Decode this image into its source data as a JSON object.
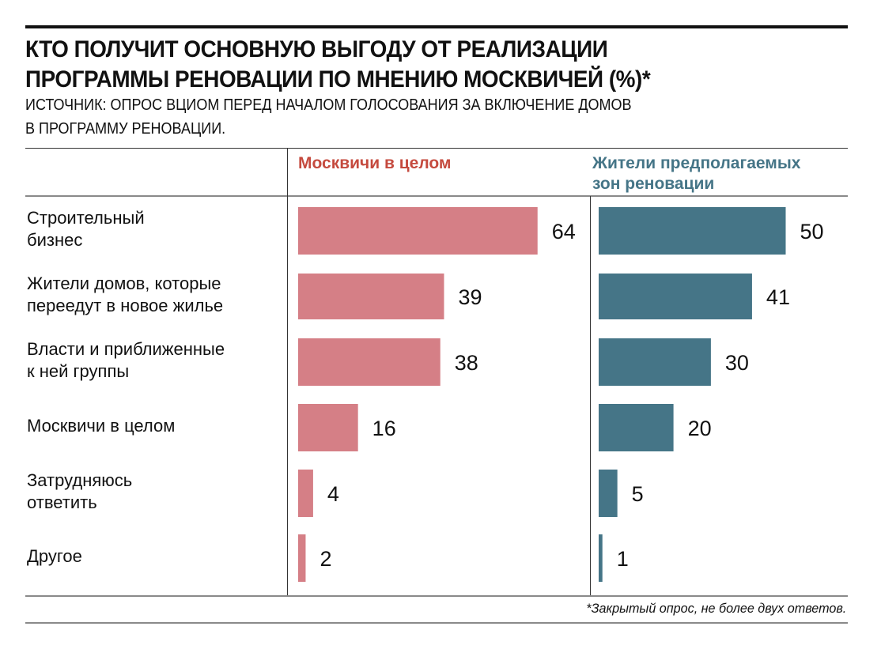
{
  "title_lines": [
    "КТО ПОЛУЧИТ ОСНОВНУЮ ВЫГОДУ ОТ РЕАЛИЗАЦИИ",
    "ПРОГРАММЫ РЕНОВАЦИИ ПО МНЕНИЮ МОСКВИЧЕЙ (%)*"
  ],
  "source_lines": [
    "ИСТОЧНИК: ОПРОС ВЦИОМ ПЕРЕД НАЧАЛОМ ГОЛОСОВАНИЯ ЗА ВКЛЮЧЕНИЕ ДОМОВ",
    "В ПРОГРАММУ РЕНОВАЦИИ."
  ],
  "footnote": "*Закрытый опрос, не более двух ответов.",
  "colors": {
    "series1": "#d57f86",
    "series2": "#457587",
    "header1": "#c54a3e",
    "header2": "#457587"
  },
  "chart_data": {
    "type": "bar",
    "orientation": "horizontal",
    "title": "КТО ПОЛУЧИТ ОСНОВНУЮ ВЫГОДУ ОТ РЕАЛИЗАЦИИ ПРОГРАММЫ РЕНОВАЦИИ ПО МНЕНИЮ МОСКВИЧЕЙ (%)*",
    "unit": "%",
    "categories": [
      [
        "Строительный",
        "бизнес"
      ],
      [
        "Жители домов, которые",
        "переедут в новое жилье"
      ],
      [
        "Власти и приближенные",
        "к ней группы"
      ],
      [
        "Москвичи в целом"
      ],
      [
        "Затрудняюсь",
        "ответить"
      ],
      [
        "Другое"
      ]
    ],
    "series": [
      {
        "name_lines": [
          "Москвичи в целом"
        ],
        "values": [
          64,
          39,
          38,
          16,
          4,
          2
        ]
      },
      {
        "name_lines": [
          "Жители предполагаемых",
          "зон реновации"
        ],
        "values": [
          50,
          41,
          30,
          20,
          5,
          1
        ]
      }
    ],
    "grid": false,
    "legend": "column-headers"
  }
}
